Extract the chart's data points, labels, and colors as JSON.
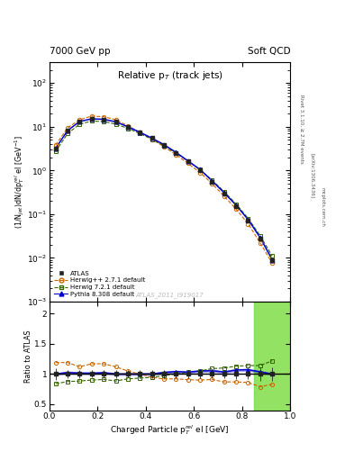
{
  "title_main": "Relative p$_{T}$ (track jets)",
  "title_top_left": "7000 GeV pp",
  "title_top_right": "Soft QCD",
  "ylabel_main": "(1/N$_{jet}$)dN/dp$^{rel}_{T}$ el [GeV$^{-1}$]",
  "ylabel_ratio": "Ratio to ATLAS",
  "xlabel": "Charged Particle p$^{rel}_{T}$ el [GeV]",
  "watermark": "ATLAS_2011_I919017",
  "right_label1": "Rivet 3.1.10, ≥ 2.7M events",
  "right_label2": "[arXiv:1306.3436]",
  "right_label3": "mcplots.cern.ch",
  "xlim": [
    0.0,
    1.0
  ],
  "ylim_main": [
    0.001,
    300
  ],
  "ylim_ratio": [
    0.4,
    2.2
  ],
  "atlas_x": [
    0.025,
    0.075,
    0.125,
    0.175,
    0.225,
    0.275,
    0.325,
    0.375,
    0.425,
    0.475,
    0.525,
    0.575,
    0.625,
    0.675,
    0.725,
    0.775,
    0.825,
    0.875,
    0.925
  ],
  "atlas_y": [
    3.2,
    8.0,
    13.0,
    15.0,
    14.5,
    13.0,
    10.0,
    7.5,
    5.5,
    3.8,
    2.5,
    1.6,
    1.0,
    0.55,
    0.3,
    0.15,
    0.07,
    0.028,
    0.009
  ],
  "atlas_yerr": [
    0.3,
    0.5,
    0.8,
    0.9,
    0.9,
    0.8,
    0.6,
    0.5,
    0.35,
    0.25,
    0.17,
    0.11,
    0.07,
    0.04,
    0.02,
    0.012,
    0.006,
    0.003,
    0.001
  ],
  "herwig_x": [
    0.025,
    0.075,
    0.125,
    0.175,
    0.225,
    0.275,
    0.325,
    0.375,
    0.425,
    0.475,
    0.525,
    0.575,
    0.625,
    0.675,
    0.725,
    0.775,
    0.825,
    0.875,
    0.925
  ],
  "herwig_y": [
    3.8,
    9.5,
    14.5,
    17.5,
    17.0,
    14.5,
    10.5,
    7.5,
    5.2,
    3.5,
    2.3,
    1.45,
    0.9,
    0.5,
    0.26,
    0.13,
    0.06,
    0.022,
    0.0075
  ],
  "herwig7_x": [
    0.025,
    0.075,
    0.125,
    0.175,
    0.225,
    0.275,
    0.325,
    0.375,
    0.425,
    0.475,
    0.525,
    0.575,
    0.625,
    0.675,
    0.725,
    0.775,
    0.825,
    0.875,
    0.925
  ],
  "herwig7_y": [
    2.7,
    7.0,
    11.5,
    13.5,
    13.2,
    11.5,
    9.2,
    7.0,
    5.2,
    3.7,
    2.5,
    1.65,
    1.05,
    0.6,
    0.33,
    0.17,
    0.08,
    0.032,
    0.011
  ],
  "pythia_x": [
    0.025,
    0.075,
    0.125,
    0.175,
    0.225,
    0.275,
    0.325,
    0.375,
    0.425,
    0.475,
    0.525,
    0.575,
    0.625,
    0.675,
    0.725,
    0.775,
    0.825,
    0.875,
    0.925
  ],
  "pythia_y": [
    3.2,
    8.2,
    13.2,
    15.2,
    14.8,
    13.0,
    10.0,
    7.5,
    5.5,
    3.9,
    2.6,
    1.65,
    1.05,
    0.58,
    0.31,
    0.16,
    0.075,
    0.029,
    0.009
  ],
  "herwig_ratio": [
    1.19,
    1.19,
    1.12,
    1.17,
    1.17,
    1.12,
    1.05,
    1.0,
    0.945,
    0.92,
    0.92,
    0.906,
    0.9,
    0.91,
    0.87,
    0.87,
    0.86,
    0.79,
    0.83
  ],
  "herwig7_ratio": [
    0.84,
    0.875,
    0.885,
    0.9,
    0.91,
    0.885,
    0.92,
    0.933,
    0.945,
    0.974,
    1.0,
    1.03,
    1.05,
    1.09,
    1.1,
    1.13,
    1.14,
    1.14,
    1.22
  ],
  "pythia_ratio": [
    1.0,
    1.025,
    1.015,
    1.013,
    1.021,
    1.0,
    1.0,
    1.0,
    1.0,
    1.026,
    1.04,
    1.031,
    1.05,
    1.055,
    1.033,
    1.067,
    1.071,
    1.036,
    1.0
  ],
  "atlas_color": "#222222",
  "herwig_color": "#cc6600",
  "herwig7_color": "#336600",
  "pythia_color": "#0000cc",
  "herwig_band_color": "#ffee44",
  "herwig7_band_color": "#66dd66"
}
